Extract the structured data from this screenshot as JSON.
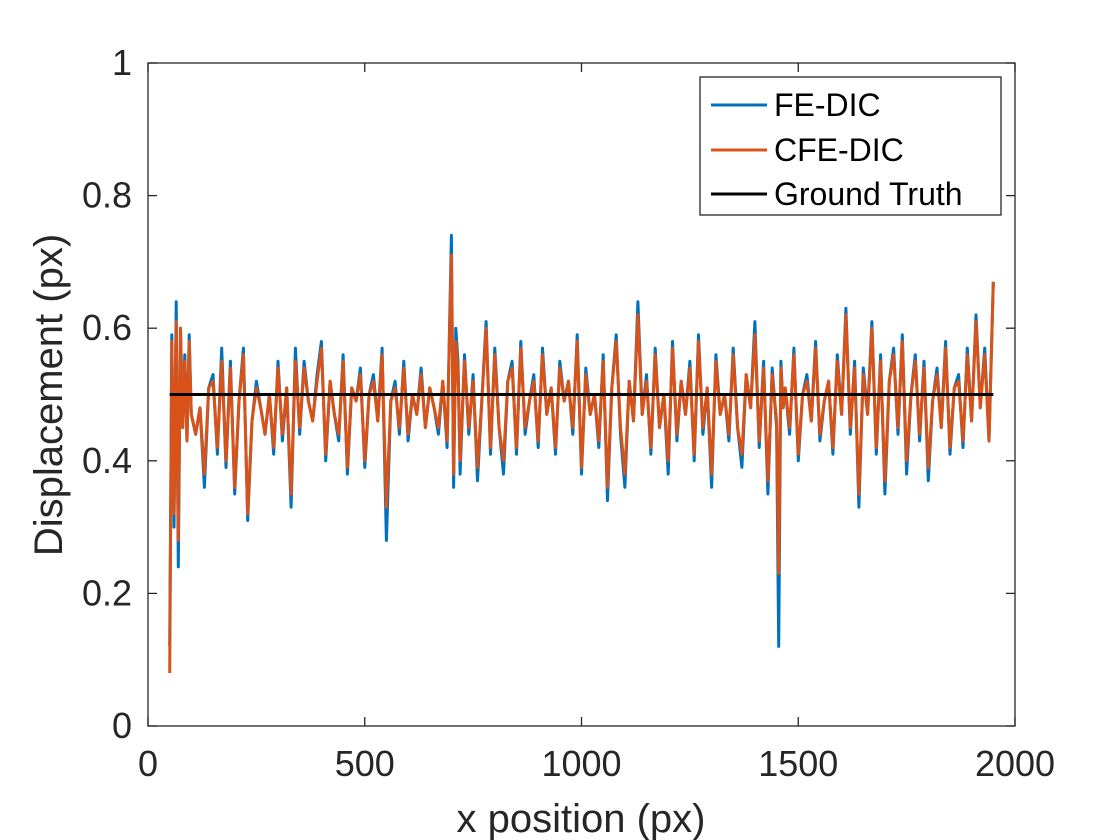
{
  "chart_data": {
    "type": "line",
    "title": "",
    "xlabel": "x position (px)",
    "ylabel": "Displacement (px)",
    "xlim": [
      0,
      2000
    ],
    "ylim": [
      0,
      1
    ],
    "xticks": [
      0,
      500,
      1000,
      1500,
      2000
    ],
    "yticks": [
      0,
      0.2,
      0.4,
      0.6,
      0.8,
      1
    ],
    "xtick_labels": [
      "0",
      "500",
      "1000",
      "1500",
      "2000"
    ],
    "ytick_labels": [
      "0",
      "0.2",
      "0.4",
      "0.6",
      "0.8",
      "1"
    ],
    "grid": false,
    "legend_position": "top-right",
    "x": [
      50,
      55,
      60,
      65,
      70,
      75,
      80,
      85,
      90,
      95,
      100,
      110,
      120,
      130,
      140,
      150,
      160,
      170,
      180,
      190,
      200,
      210,
      220,
      230,
      240,
      250,
      260,
      270,
      280,
      290,
      300,
      310,
      320,
      330,
      340,
      350,
      360,
      370,
      380,
      390,
      400,
      410,
      420,
      430,
      440,
      450,
      460,
      470,
      480,
      490,
      500,
      510,
      520,
      530,
      540,
      550,
      560,
      570,
      580,
      590,
      600,
      610,
      620,
      630,
      640,
      650,
      660,
      670,
      680,
      690,
      700,
      705,
      710,
      715,
      720,
      730,
      740,
      750,
      760,
      770,
      780,
      790,
      800,
      810,
      820,
      830,
      840,
      850,
      860,
      870,
      880,
      890,
      900,
      910,
      920,
      930,
      940,
      950,
      960,
      970,
      980,
      990,
      1000,
      1010,
      1020,
      1030,
      1040,
      1050,
      1060,
      1070,
      1080,
      1090,
      1100,
      1110,
      1120,
      1130,
      1140,
      1150,
      1160,
      1170,
      1180,
      1190,
      1200,
      1210,
      1220,
      1230,
      1240,
      1250,
      1260,
      1270,
      1280,
      1290,
      1300,
      1310,
      1320,
      1330,
      1340,
      1350,
      1360,
      1370,
      1380,
      1390,
      1400,
      1410,
      1420,
      1430,
      1440,
      1450,
      1455,
      1460,
      1465,
      1470,
      1480,
      1490,
      1500,
      1510,
      1520,
      1530,
      1540,
      1550,
      1560,
      1570,
      1580,
      1590,
      1600,
      1610,
      1620,
      1630,
      1640,
      1650,
      1660,
      1670,
      1680,
      1690,
      1700,
      1710,
      1720,
      1730,
      1740,
      1750,
      1760,
      1770,
      1780,
      1790,
      1800,
      1810,
      1820,
      1830,
      1840,
      1850,
      1860,
      1870,
      1880,
      1890,
      1900,
      1910,
      1920,
      1930,
      1940,
      1950
    ],
    "series": [
      {
        "name": "FE-DIC",
        "color": "#0072BD",
        "values": [
          0.12,
          0.59,
          0.3,
          0.64,
          0.24,
          0.6,
          0.45,
          0.56,
          0.43,
          0.59,
          0.47,
          0.44,
          0.48,
          0.36,
          0.51,
          0.53,
          0.41,
          0.57,
          0.39,
          0.55,
          0.35,
          0.49,
          0.57,
          0.31,
          0.46,
          0.52,
          0.48,
          0.44,
          0.5,
          0.41,
          0.55,
          0.43,
          0.51,
          0.33,
          0.57,
          0.44,
          0.55,
          0.49,
          0.46,
          0.53,
          0.58,
          0.4,
          0.52,
          0.47,
          0.43,
          0.56,
          0.38,
          0.51,
          0.49,
          0.54,
          0.39,
          0.5,
          0.53,
          0.46,
          0.57,
          0.28,
          0.49,
          0.52,
          0.44,
          0.55,
          0.43,
          0.5,
          0.47,
          0.54,
          0.45,
          0.51,
          0.48,
          0.44,
          0.52,
          0.42,
          0.74,
          0.36,
          0.6,
          0.55,
          0.38,
          0.56,
          0.44,
          0.53,
          0.37,
          0.49,
          0.61,
          0.41,
          0.57,
          0.45,
          0.38,
          0.52,
          0.55,
          0.41,
          0.58,
          0.44,
          0.49,
          0.53,
          0.42,
          0.57,
          0.47,
          0.51,
          0.41,
          0.55,
          0.49,
          0.52,
          0.44,
          0.59,
          0.38,
          0.54,
          0.47,
          0.5,
          0.42,
          0.56,
          0.34,
          0.51,
          0.59,
          0.44,
          0.36,
          0.52,
          0.46,
          0.64,
          0.47,
          0.53,
          0.41,
          0.57,
          0.45,
          0.5,
          0.38,
          0.58,
          0.43,
          0.52,
          0.47,
          0.55,
          0.4,
          0.59,
          0.44,
          0.51,
          0.36,
          0.56,
          0.47,
          0.5,
          0.43,
          0.57,
          0.45,
          0.39,
          0.53,
          0.48,
          0.61,
          0.42,
          0.55,
          0.35,
          0.54,
          0.45,
          0.12,
          0.55,
          0.48,
          0.51,
          0.44,
          0.57,
          0.4,
          0.5,
          0.53,
          0.46,
          0.58,
          0.43,
          0.49,
          0.52,
          0.41,
          0.56,
          0.47,
          0.63,
          0.44,
          0.55,
          0.33,
          0.54,
          0.47,
          0.61,
          0.41,
          0.56,
          0.35,
          0.52,
          0.57,
          0.44,
          0.59,
          0.38,
          0.5,
          0.56,
          0.43,
          0.55,
          0.37,
          0.49,
          0.54,
          0.45,
          0.58,
          0.41,
          0.51,
          0.53,
          0.42,
          0.57,
          0.46,
          0.62,
          0.48,
          0.57,
          0.43,
          0.67
        ]
      },
      {
        "name": "CFE-DIC",
        "color": "#D95319",
        "values": [
          0.08,
          0.58,
          0.32,
          0.61,
          0.28,
          0.6,
          0.45,
          0.55,
          0.43,
          0.58,
          0.47,
          0.44,
          0.48,
          0.38,
          0.51,
          0.52,
          0.42,
          0.55,
          0.4,
          0.54,
          0.36,
          0.49,
          0.56,
          0.32,
          0.46,
          0.51,
          0.48,
          0.44,
          0.5,
          0.42,
          0.54,
          0.44,
          0.51,
          0.35,
          0.55,
          0.45,
          0.54,
          0.49,
          0.46,
          0.52,
          0.57,
          0.41,
          0.52,
          0.47,
          0.44,
          0.55,
          0.39,
          0.51,
          0.49,
          0.53,
          0.4,
          0.5,
          0.52,
          0.46,
          0.56,
          0.33,
          0.49,
          0.51,
          0.45,
          0.54,
          0.44,
          0.5,
          0.47,
          0.53,
          0.45,
          0.51,
          0.48,
          0.45,
          0.52,
          0.43,
          0.71,
          0.38,
          0.58,
          0.54,
          0.4,
          0.55,
          0.45,
          0.52,
          0.39,
          0.49,
          0.6,
          0.42,
          0.56,
          0.45,
          0.4,
          0.52,
          0.54,
          0.42,
          0.57,
          0.45,
          0.49,
          0.52,
          0.43,
          0.56,
          0.47,
          0.51,
          0.42,
          0.54,
          0.49,
          0.52,
          0.45,
          0.58,
          0.39,
          0.53,
          0.47,
          0.5,
          0.43,
          0.55,
          0.36,
          0.51,
          0.58,
          0.45,
          0.38,
          0.52,
          0.46,
          0.62,
          0.47,
          0.52,
          0.42,
          0.56,
          0.45,
          0.5,
          0.4,
          0.57,
          0.44,
          0.52,
          0.47,
          0.54,
          0.41,
          0.58,
          0.45,
          0.51,
          0.38,
          0.55,
          0.47,
          0.5,
          0.44,
          0.56,
          0.45,
          0.41,
          0.53,
          0.48,
          0.59,
          0.43,
          0.54,
          0.37,
          0.53,
          0.46,
          0.23,
          0.54,
          0.48,
          0.51,
          0.45,
          0.56,
          0.41,
          0.5,
          0.52,
          0.46,
          0.57,
          0.44,
          0.49,
          0.52,
          0.42,
          0.55,
          0.47,
          0.62,
          0.45,
          0.54,
          0.35,
          0.53,
          0.47,
          0.6,
          0.42,
          0.55,
          0.37,
          0.52,
          0.56,
          0.45,
          0.58,
          0.4,
          0.5,
          0.55,
          0.44,
          0.54,
          0.39,
          0.49,
          0.53,
          0.45,
          0.57,
          0.42,
          0.51,
          0.52,
          0.43,
          0.56,
          0.46,
          0.61,
          0.48,
          0.56,
          0.43,
          0.67
        ]
      },
      {
        "name": "Ground Truth",
        "color": "#000000",
        "x": [
          50,
          1950
        ],
        "values": [
          0.5,
          0.5
        ]
      }
    ]
  }
}
